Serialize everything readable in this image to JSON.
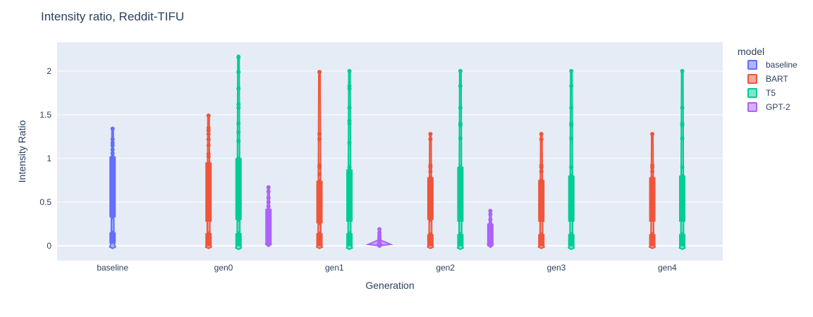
{
  "chart_data": {
    "type": "violin",
    "title": "Intensity ratio, Reddit-TIFU",
    "xlabel": "Generation",
    "ylabel": "Intensity Ratio",
    "categories": [
      "baseline",
      "gen0",
      "gen1",
      "gen2",
      "gen3",
      "gen4"
    ],
    "ylim": [
      -0.17,
      2.33
    ],
    "yticks": [
      0,
      0.5,
      1,
      1.5,
      2
    ],
    "ytick_labels": [
      "0",
      "0.5",
      "1",
      "1.5",
      "2"
    ],
    "grid": true,
    "legend_position": "top-right",
    "legend_title": "model",
    "series": [
      {
        "name": "baseline",
        "color": "#636efa",
        "values": [
          {
            "category": "baseline",
            "min": -0.03,
            "max": 1.34,
            "box": [
              0.33,
              1.02
            ],
            "lower_box": [
              0.03,
              0.15
            ],
            "points": [
              1.34,
              1.22,
              1.18,
              1.15,
              1.1,
              1.06,
              1.02,
              0.98,
              0.94,
              0.9,
              0.85,
              0.8,
              0.75,
              0.7,
              0.65,
              0.6,
              0.55,
              0.5,
              0.45,
              0.4,
              0.36,
              0.33,
              0.15,
              0.12,
              0.08,
              0.05
            ]
          }
        ]
      },
      {
        "name": "BART",
        "color": "#ef553b",
        "values": [
          {
            "category": "gen0",
            "min": -0.03,
            "max": 1.49,
            "box": [
              0.28,
              0.95
            ],
            "lower_box": [
              0.0,
              0.14
            ],
            "points": [
              1.49,
              1.35,
              1.32,
              1.28,
              1.22,
              1.15,
              1.05,
              1.02,
              0.95,
              0.9,
              0.85,
              0.8,
              0.75,
              0.7,
              0.65,
              0.6,
              0.55,
              0.5,
              0.45,
              0.4,
              0.35,
              0.3,
              0.14,
              0.1,
              0.06,
              0.02
            ]
          },
          {
            "category": "gen1",
            "min": -0.03,
            "max": 2.0,
            "box": [
              0.26,
              0.74
            ],
            "lower_box": [
              0.0,
              0.14
            ],
            "points": [
              1.99,
              1.28,
              1.22,
              0.92,
              0.9,
              0.82,
              0.74,
              0.7,
              0.65,
              0.6,
              0.55,
              0.5,
              0.45,
              0.4,
              0.35,
              0.3,
              0.26,
              0.14,
              0.1,
              0.06,
              0.02
            ]
          },
          {
            "category": "gen2",
            "min": -0.03,
            "max": 1.28,
            "box": [
              0.3,
              0.78
            ],
            "lower_box": [
              0.0,
              0.13
            ],
            "points": [
              1.28,
              1.22,
              0.92,
              0.9,
              0.85,
              0.78,
              0.72,
              0.65,
              0.6,
              0.55,
              0.5,
              0.45,
              0.4,
              0.35,
              0.3,
              0.13,
              0.1,
              0.06,
              0.02
            ]
          },
          {
            "category": "gen3",
            "min": -0.03,
            "max": 1.28,
            "box": [
              0.28,
              0.75
            ],
            "lower_box": [
              0.0,
              0.13
            ],
            "points": [
              1.28,
              1.22,
              0.92,
              0.9,
              0.85,
              0.75,
              0.7,
              0.65,
              0.6,
              0.55,
              0.5,
              0.45,
              0.4,
              0.35,
              0.3,
              0.13,
              0.1,
              0.06,
              0.02
            ]
          },
          {
            "category": "gen4",
            "min": -0.03,
            "max": 1.28,
            "box": [
              0.28,
              0.78
            ],
            "lower_box": [
              0.0,
              0.13
            ],
            "points": [
              1.28,
              0.92,
              0.9,
              0.85,
              0.78,
              0.7,
              0.65,
              0.6,
              0.55,
              0.5,
              0.45,
              0.4,
              0.35,
              0.3,
              0.13,
              0.1,
              0.06,
              0.02
            ]
          }
        ]
      },
      {
        "name": "T5",
        "color": "#00cc96",
        "values": [
          {
            "category": "gen0",
            "min": -0.04,
            "max": 2.18,
            "box": [
              0.3,
              1.0
            ],
            "lower_box": [
              0.0,
              0.14
            ],
            "points": [
              2.16,
              1.99,
              1.8,
              1.62,
              1.58,
              1.4,
              1.3,
              1.2,
              1.0,
              0.98,
              0.92,
              0.85,
              0.8,
              0.75,
              0.7,
              0.65,
              0.6,
              0.55,
              0.5,
              0.45,
              0.4,
              0.35,
              0.3,
              0.14,
              0.1,
              0.06,
              0.02
            ]
          },
          {
            "category": "gen1",
            "min": -0.04,
            "max": 2.01,
            "box": [
              0.28,
              0.87
            ],
            "lower_box": [
              0.0,
              0.14
            ],
            "points": [
              2.0,
              1.83,
              1.8,
              1.58,
              1.43,
              1.4,
              1.18,
              0.9,
              0.87,
              0.82,
              0.75,
              0.7,
              0.65,
              0.6,
              0.55,
              0.5,
              0.45,
              0.4,
              0.35,
              0.3,
              0.14,
              0.1,
              0.06,
              0.02
            ]
          },
          {
            "category": "gen2",
            "min": -0.04,
            "max": 2.01,
            "box": [
              0.28,
              0.9
            ],
            "lower_box": [
              0.0,
              0.13
            ],
            "points": [
              2.0,
              1.83,
              1.58,
              1.4,
              1.38,
              1.23,
              0.9,
              0.88,
              0.82,
              0.75,
              0.7,
              0.65,
              0.6,
              0.55,
              0.5,
              0.45,
              0.4,
              0.35,
              0.3,
              0.13,
              0.1,
              0.06,
              0.02
            ]
          },
          {
            "category": "gen3",
            "min": -0.04,
            "max": 2.01,
            "box": [
              0.28,
              0.8
            ],
            "lower_box": [
              0.0,
              0.13
            ],
            "points": [
              2.0,
              1.83,
              1.58,
              1.4,
              1.38,
              1.23,
              0.9,
              0.8,
              0.75,
              0.7,
              0.65,
              0.6,
              0.55,
              0.5,
              0.45,
              0.4,
              0.35,
              0.3,
              0.13,
              0.1,
              0.06,
              0.02
            ]
          },
          {
            "category": "gen4",
            "min": -0.04,
            "max": 2.01,
            "box": [
              0.28,
              0.8
            ],
            "lower_box": [
              0.0,
              0.13
            ],
            "points": [
              2.0,
              1.58,
              1.4,
              1.38,
              1.23,
              0.9,
              0.8,
              0.78,
              0.72,
              0.65,
              0.6,
              0.55,
              0.5,
              0.45,
              0.4,
              0.35,
              0.3,
              0.13,
              0.1,
              0.06,
              0.02
            ]
          }
        ]
      },
      {
        "name": "GPT-2",
        "color": "#ab63fa",
        "values": [
          {
            "category": "gen0",
            "min": 0.0,
            "max": 0.67,
            "box": [
              0.02,
              0.42
            ],
            "lower_box": null,
            "points": [
              0.67,
              0.62,
              0.55,
              0.5,
              0.45,
              0.4,
              0.35,
              0.3,
              0.25,
              0.2,
              0.15,
              0.1,
              0.06,
              0.03,
              0.01
            ]
          },
          {
            "category": "gen1",
            "min": 0.0,
            "max": 0.19,
            "box": [
              0.0,
              0.02
            ],
            "lower_box": null,
            "points": [
              0.19,
              0.15,
              0.12,
              0.1,
              0.08,
              0.06,
              0.04,
              0.02,
              0.0
            ]
          },
          {
            "category": "gen2",
            "min": 0.0,
            "max": 0.4,
            "box": [
              0.0,
              0.25
            ],
            "lower_box": null,
            "points": [
              0.4,
              0.36,
              0.3,
              0.25,
              0.2,
              0.15,
              0.1,
              0.06,
              0.03,
              0.0
            ]
          }
        ]
      }
    ]
  }
}
